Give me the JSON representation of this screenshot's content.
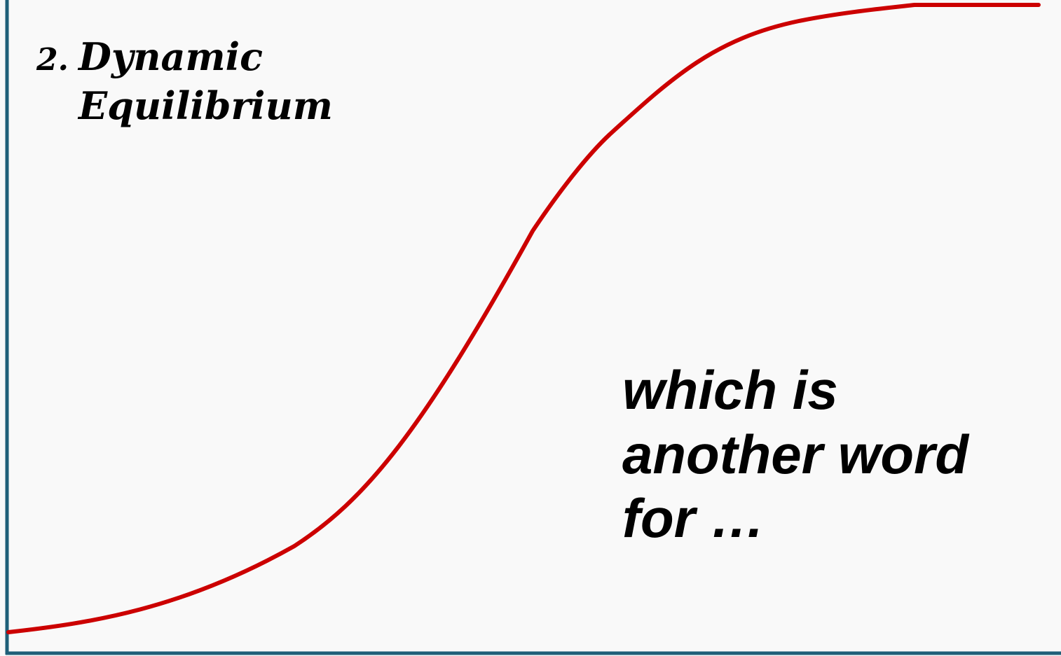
{
  "heading": {
    "number": "2.",
    "lines": [
      "Dynamic",
      "Equilibrium"
    ]
  },
  "note": {
    "lines": [
      "which is",
      "another word",
      "for …"
    ]
  }
}
